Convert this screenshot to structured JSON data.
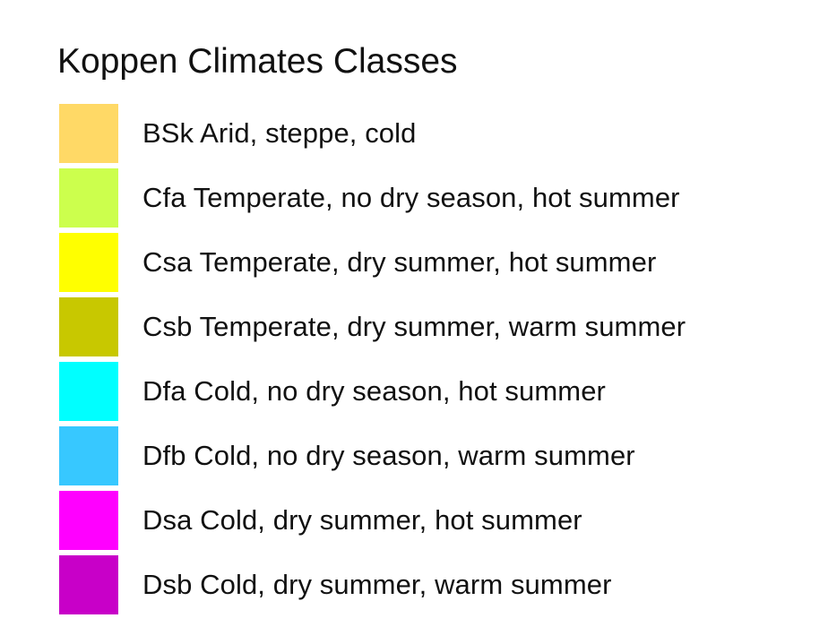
{
  "legend": {
    "title": "Koppen Climates Classes",
    "items": [
      {
        "code": "BSk",
        "label": "BSk Arid, steppe, cold",
        "color": "#ffd966"
      },
      {
        "code": "Cfa",
        "label": "Cfa Temperate, no dry season, hot summer",
        "color": "#ccff4d"
      },
      {
        "code": "Csa",
        "label": "Csa Temperate, dry summer, hot summer",
        "color": "#ffff00"
      },
      {
        "code": "Csb",
        "label": "Csb Temperate, dry summer, warm summer",
        "color": "#c8c800"
      },
      {
        "code": "Dfa",
        "label": "Dfa Cold, no dry season, hot summer",
        "color": "#00ffff"
      },
      {
        "code": "Dfb",
        "label": "Dfb Cold, no dry season, warm summer",
        "color": "#37c8ff"
      },
      {
        "code": "Dsa",
        "label": "Dsa Cold, dry summer, hot summer",
        "color": "#ff00ff"
      },
      {
        "code": "Dsb",
        "label": "Dsb Cold, dry summer, warm summer",
        "color": "#c800c8"
      }
    ]
  }
}
